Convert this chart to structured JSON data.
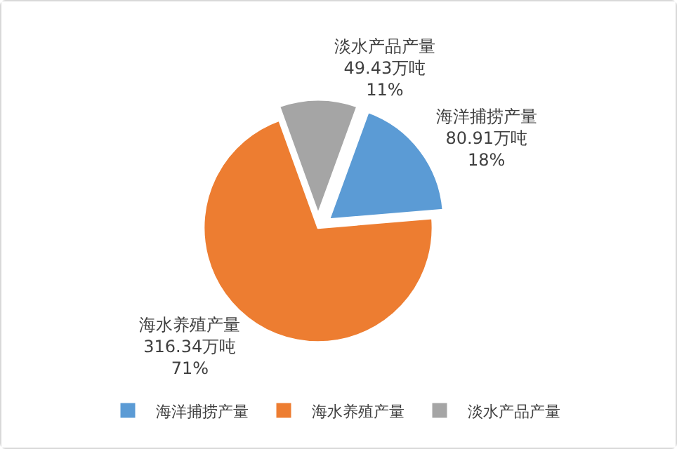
{
  "chart_data": {
    "type": "pie",
    "categories": [
      "海洋捕捞产量",
      "海水养殖产量",
      "淡水产品产量"
    ],
    "values": [
      80.91,
      316.34,
      49.43
    ],
    "value_labels": [
      "80.91万吨\n18%",
      "316.34万吨\n71%",
      "49.43万吨\n11%"
    ],
    "colors": [
      "#5b9bd5",
      "#ed7d31",
      "#a5a5a5"
    ],
    "legend": "bottom"
  }
}
